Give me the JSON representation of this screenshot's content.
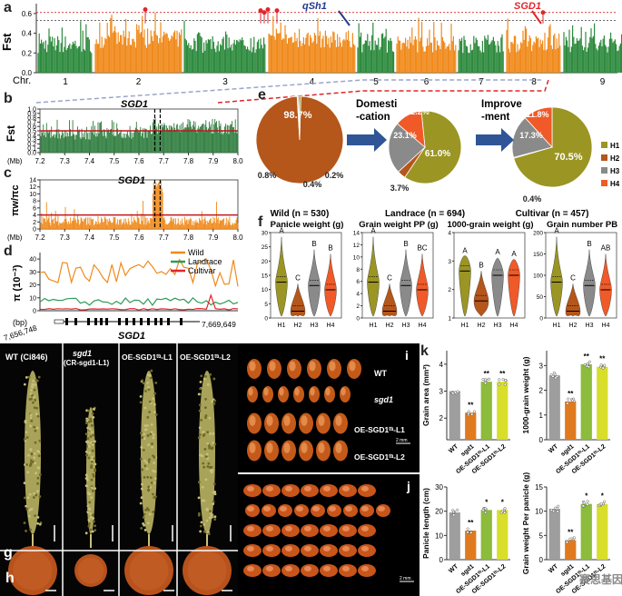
{
  "panels": {
    "a": {
      "label": "a",
      "ylabel": "Fst",
      "xlabel": "Chr.",
      "yticks": [
        "0.0",
        "0.2",
        "0.4",
        "0.6"
      ],
      "chromosomes": [
        "1",
        "2",
        "3",
        "4",
        "5",
        "6",
        "7",
        "8",
        "9"
      ],
      "annotations": {
        "qsh1": "qSh1",
        "sgd1": "SGD1"
      },
      "colors": {
        "odd": "#2e8b3e",
        "even": "#f08a1c",
        "marker": "#e0262b"
      }
    },
    "b": {
      "label": "b",
      "ylabel": "Fst",
      "xunit": "(Mb)",
      "gene": "SGD1",
      "yticks": [
        "0.0",
        "0.1",
        "0.2",
        "0.3",
        "0.4",
        "0.5",
        "0.6",
        "0.7",
        "0.8",
        "0.9",
        "1.0"
      ],
      "xticks": [
        "7.2",
        "7.3",
        "7.4",
        "7.5",
        "7.6",
        "7.7",
        "7.8",
        "7.9",
        "8.0"
      ]
    },
    "c": {
      "label": "c",
      "ylabel": "πw/πc",
      "xunit": "(Mb)",
      "gene": "SGD1",
      "yticks": [
        "0",
        "2",
        "4",
        "6",
        "8",
        "10",
        "12",
        "14"
      ],
      "xticks": [
        "7.2",
        "7.3",
        "7.4",
        "7.5",
        "7.6",
        "7.7",
        "7.8",
        "7.9",
        "8.0"
      ]
    },
    "d": {
      "label": "d",
      "ylabel": "π (10⁻³)",
      "xunit": "(bp)",
      "yticks": [
        "0",
        "10",
        "20",
        "30",
        "40"
      ],
      "start": "7,656,748",
      "end": "7,669,649",
      "gene": "SGD1",
      "legend": [
        {
          "name": "Wild",
          "color": "#f08a1c"
        },
        {
          "name": "Landrace",
          "color": "#2e9b58"
        },
        {
          "name": "Cultivar",
          "color": "#e0262b"
        }
      ]
    },
    "e": {
      "label": "e",
      "arrow1": "Domesti-\n-cation",
      "arrow1_a": "Domesti",
      "arrow1_b": "-cation",
      "arrow2_a": "Improve",
      "arrow2_b": "-ment",
      "legend": [
        {
          "name": "H1",
          "color": "#9b9524"
        },
        {
          "name": "H2",
          "color": "#b5561a"
        },
        {
          "name": "H3",
          "color": "#8a8a8a"
        },
        {
          "name": "H4",
          "color": "#f05a28"
        }
      ],
      "pies": [
        {
          "caption": "Wild (n = 530)",
          "labels": {
            "main": "98.7%",
            "a": "0.8%",
            "b": "0.2%",
            "c": "0.4%"
          },
          "values": [
            0.8,
            98.7,
            0.2,
            0.4
          ]
        },
        {
          "caption": "Landrace (n = 694)",
          "labels": {
            "main": "61.0%",
            "a": "23.1%",
            "b": "12.2%",
            "c": "3.7%"
          },
          "values": [
            61.0,
            3.7,
            23.1,
            12.2
          ]
        },
        {
          "caption": "Cultivar (n = 457)",
          "labels": {
            "main": "70.5%",
            "a": "17.3%",
            "b": "11.8%",
            "c": "0.4%"
          },
          "values": [
            70.5,
            0.4,
            17.3,
            11.8
          ]
        }
      ]
    },
    "f": {
      "label": "f",
      "violins": [
        {
          "title": "Panicle weight (g)",
          "yticks": [
            "0",
            "5",
            "10",
            "15",
            "20",
            "25",
            "30"
          ],
          "letters": [
            "A",
            "C",
            "B",
            "B"
          ]
        },
        {
          "title": "Grain weight PP (g)",
          "yticks": [
            "0",
            "2",
            "4",
            "6",
            "8",
            "10",
            "12",
            "14"
          ],
          "letters": [
            "A",
            "C",
            "B",
            "BC"
          ]
        },
        {
          "title": "1000-grain weight (g)",
          "yticks": [
            "1",
            "2",
            "3",
            "4"
          ],
          "letters": [
            "A",
            "B",
            "A",
            "A"
          ]
        },
        {
          "title": "Grain number PB",
          "yticks": [
            "0",
            "50",
            "100",
            "150",
            "200"
          ],
          "letters": [
            "A",
            "C",
            "B",
            "AB"
          ]
        }
      ],
      "groups": [
        "H1",
        "H2",
        "H3",
        "H4"
      ]
    },
    "g": {
      "label": "g",
      "headers": [
        "WT (Ci846)",
        "sgd1",
        "(CR-sgd1-L1)",
        "OE-SGD1ᵗᵗᶦ-L1",
        "OE-SGD1ᵗᵗᶦ-L2"
      ]
    },
    "h": {
      "label": "h"
    },
    "i": {
      "label": "i",
      "rows": [
        "WT",
        "sgd1",
        "OE-SGD1ᵗᵗᶦ-L1",
        "OE-SGD1ᵗᵗᶦ-L2"
      ],
      "scale": "2 mm"
    },
    "j": {
      "label": "j",
      "scale": "2 mm"
    },
    "k": {
      "label": "k",
      "bars": [
        {
          "ylabel": "Grain area (mm²)",
          "yticks": [
            "2",
            "3",
            "4"
          ],
          "values": [
            3.0,
            2.2,
            3.35,
            3.35
          ],
          "ymin": 1.2,
          "ymax": 4.5,
          "stars": [
            "",
            "**",
            "**",
            "**"
          ]
        },
        {
          "ylabel": "1000-grain weight (g)",
          "yticks": [
            "0",
            "1",
            "2",
            "3"
          ],
          "values": [
            2.6,
            1.55,
            3.05,
            2.95
          ],
          "ymin": 0,
          "ymax": 3.6,
          "stars": [
            "",
            "**",
            "**",
            "**"
          ]
        },
        {
          "ylabel": "Panicle length (cm)",
          "yticks": [
            "0",
            "10",
            "20",
            "30"
          ],
          "values": [
            19.5,
            12.0,
            20.5,
            20.5
          ],
          "ymin": 0,
          "ymax": 30,
          "stars": [
            "",
            "**",
            "*",
            "*"
          ]
        },
        {
          "ylabel": "Grain weight Per panicle (g)",
          "yticks": [
            "0",
            "5",
            "10",
            "15"
          ],
          "values": [
            10.5,
            4.0,
            11.5,
            11.5
          ],
          "ymin": 0,
          "ymax": 15,
          "stars": [
            "",
            "**",
            "*",
            "*"
          ]
        }
      ],
      "groups": [
        "WT",
        "sgd1",
        "OE-SGD1ᵗᵗᶦ-L1",
        "OE-SGD1ᵗᵗᶦ-L2"
      ],
      "colors": [
        "#9e9e9e",
        "#e07a1f",
        "#8dbb3c",
        "#d8de2a"
      ]
    },
    "watermark": "赛思基因"
  }
}
